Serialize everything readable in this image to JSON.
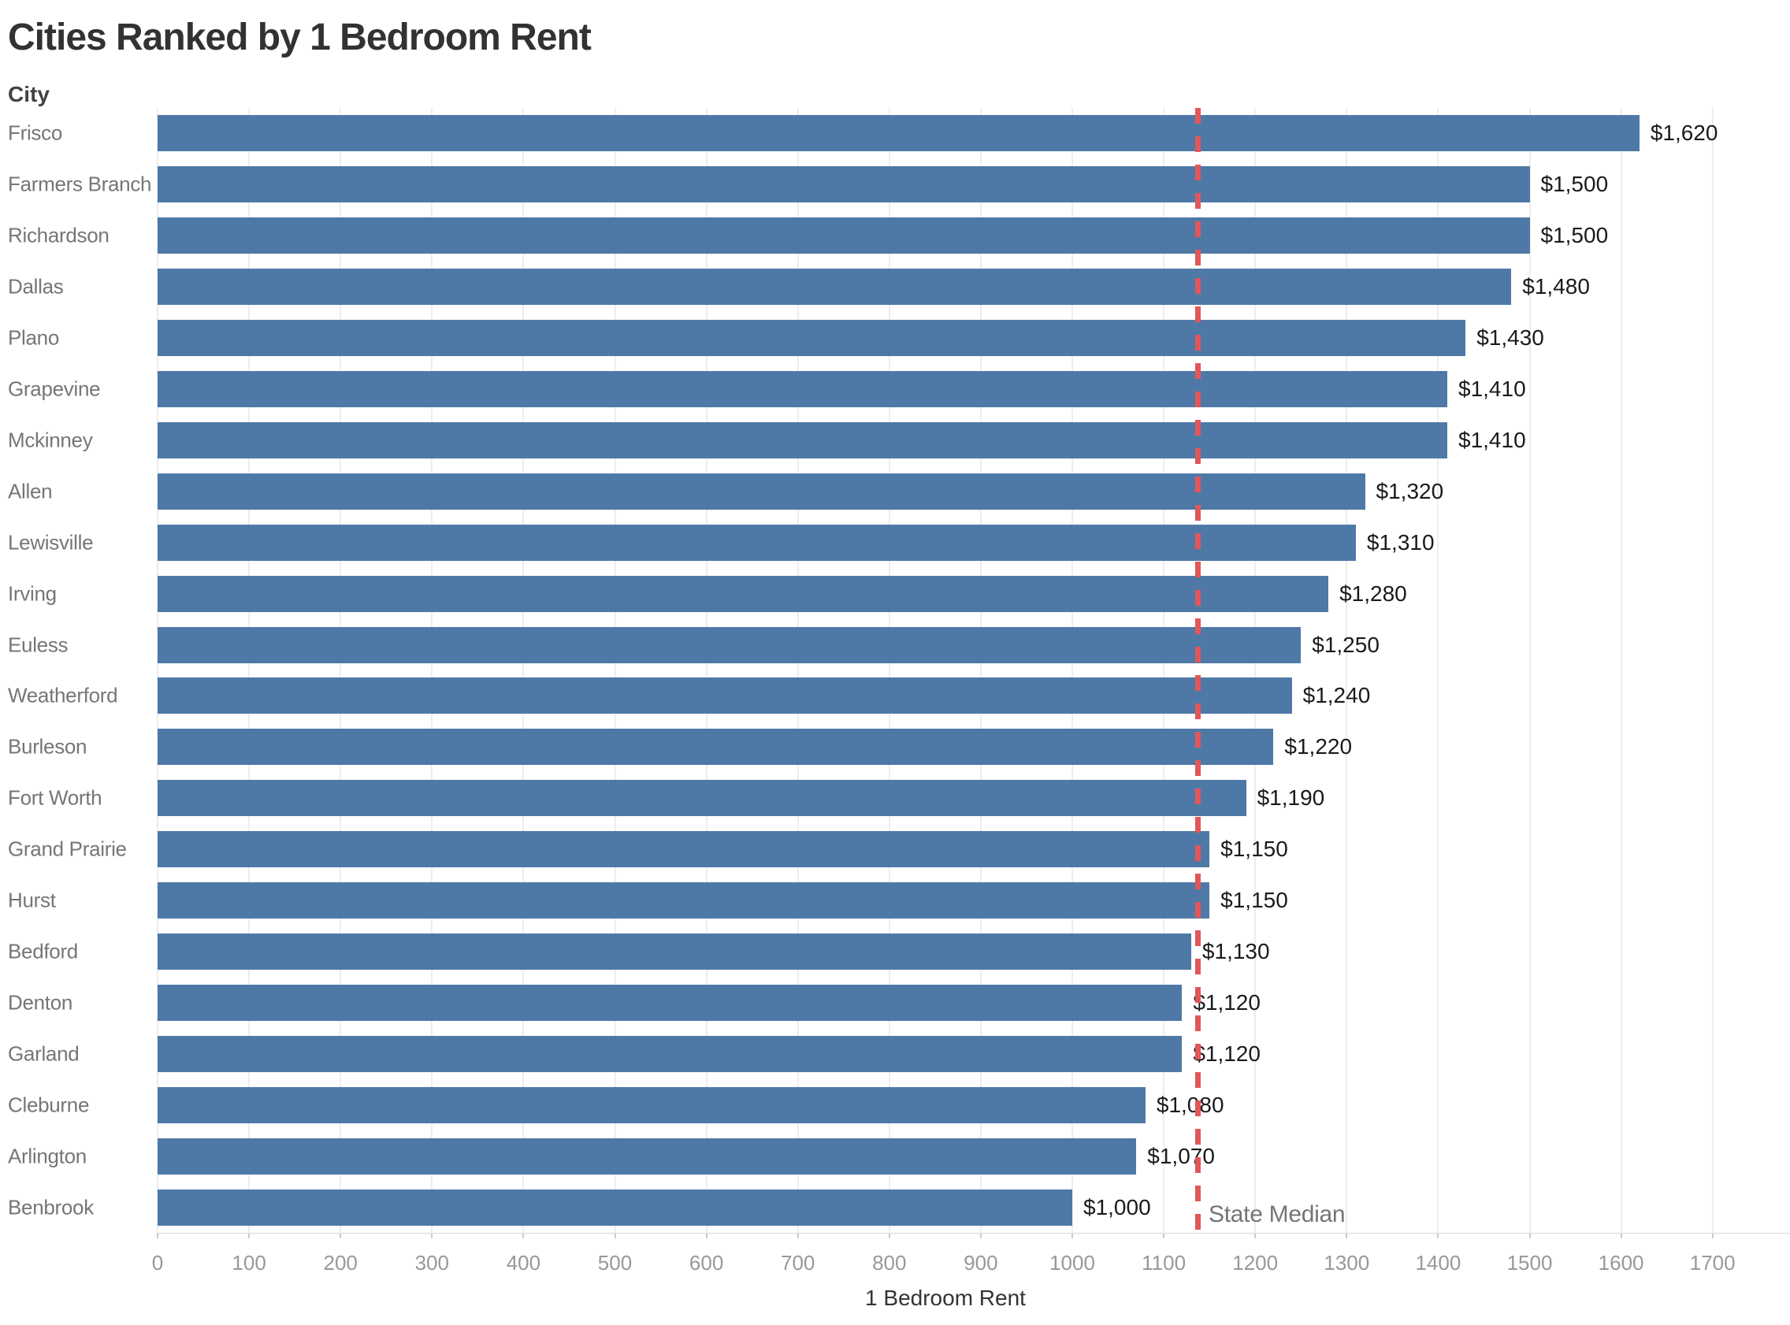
{
  "chart_data": {
    "type": "bar",
    "orientation": "horizontal",
    "title": "Cities Ranked by 1 Bedroom Rent",
    "ylabel": "City",
    "xlabel": "1 Bedroom Rent",
    "categories": [
      "Frisco",
      "Farmers Branch",
      "Richardson",
      "Dallas",
      "Plano",
      "Grapevine",
      "Mckinney",
      "Allen",
      "Lewisville",
      "Irving",
      "Euless",
      "Weatherford",
      "Burleson",
      "Fort Worth",
      "Grand Prairie",
      "Hurst",
      "Bedford",
      "Denton",
      "Garland",
      "Cleburne",
      "Arlington",
      "Benbrook"
    ],
    "values": [
      1620,
      1500,
      1500,
      1480,
      1430,
      1410,
      1410,
      1320,
      1310,
      1280,
      1250,
      1240,
      1220,
      1190,
      1150,
      1150,
      1130,
      1120,
      1120,
      1080,
      1070,
      1000
    ],
    "value_labels": [
      "$1,620",
      "$1,500",
      "$1,500",
      "$1,480",
      "$1,430",
      "$1,410",
      "$1,410",
      "$1,320",
      "$1,310",
      "$1,280",
      "$1,250",
      "$1,240",
      "$1,220",
      "$1,190",
      "$1,150",
      "$1,150",
      "$1,130",
      "$1,120",
      "$1,120",
      "$1,080",
      "$1,070",
      "$1,000"
    ],
    "xlim": [
      0,
      1785
    ],
    "xticks": [
      0,
      100,
      200,
      300,
      400,
      500,
      600,
      700,
      800,
      900,
      1000,
      1100,
      1200,
      1300,
      1400,
      1500,
      1600,
      1700
    ],
    "grid": "vertical",
    "legend": null,
    "reference_line": {
      "value": 1137,
      "label": "State Median",
      "style": "dashed"
    }
  },
  "colors": {
    "bar": "#4e79a7",
    "reference_line": "#e15759",
    "title_text": "#323232",
    "category_text": "#767676",
    "value_text": "#1a1a1a",
    "tick_text": "#989898",
    "gridline": "#ededed",
    "axis_line": "#d9d9d9",
    "reference_label_text": "#757575"
  }
}
